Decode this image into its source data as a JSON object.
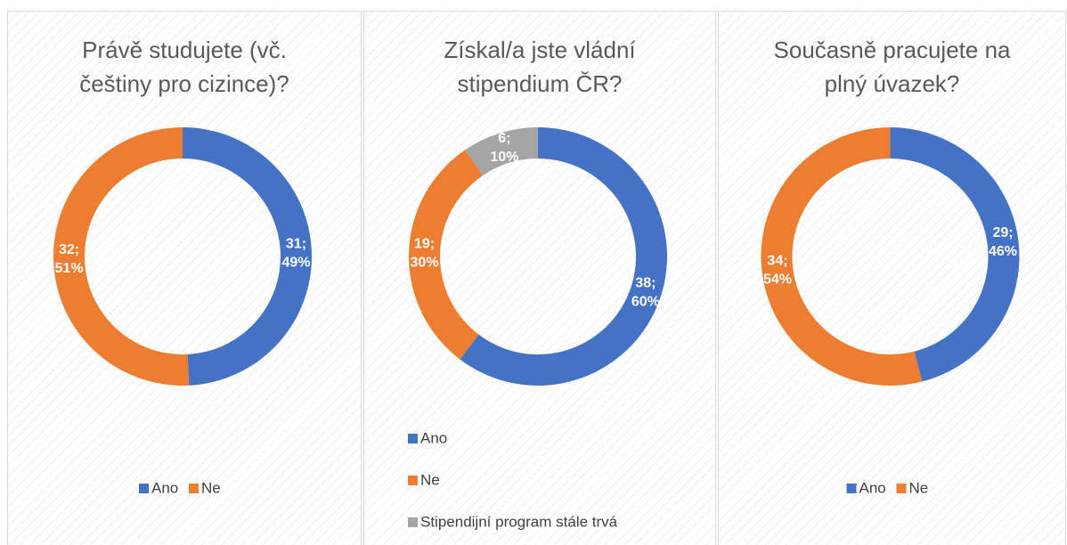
{
  "chart_data": [
    {
      "type": "donut",
      "title": [
        "Právě studujete (vč.",
        "češtiny pro cizince)?"
      ],
      "categories": [
        "Ano",
        "Ne"
      ],
      "values": [
        31,
        32
      ],
      "value_labels": [
        [
          "31;",
          "49%"
        ],
        [
          "32;",
          "51%"
        ]
      ],
      "colors": [
        "#4472c4",
        "#ed7d31"
      ],
      "legend": "bottom"
    },
    {
      "type": "donut",
      "title": [
        "Získal/a jste vládní",
        "stipendium ČR?"
      ],
      "categories": [
        "Ano",
        "Ne",
        "Stipendijní program stále trvá"
      ],
      "values": [
        38,
        19,
        6
      ],
      "value_labels": [
        [
          "38;",
          "60%"
        ],
        [
          "19;",
          "30%"
        ],
        [
          "6;",
          "10%"
        ]
      ],
      "colors": [
        "#4472c4",
        "#ed7d31",
        "#a5a5a5"
      ],
      "legend": "bottom-left"
    },
    {
      "type": "donut",
      "title": [
        "Současně pracujete na",
        "plný úvazek?"
      ],
      "categories": [
        "Ano",
        "Ne"
      ],
      "values": [
        29,
        34
      ],
      "value_labels": [
        [
          "29;",
          "46%"
        ],
        [
          "34;",
          "54%"
        ]
      ],
      "colors": [
        "#4472c4",
        "#ed7d31"
      ],
      "legend": "bottom"
    }
  ]
}
